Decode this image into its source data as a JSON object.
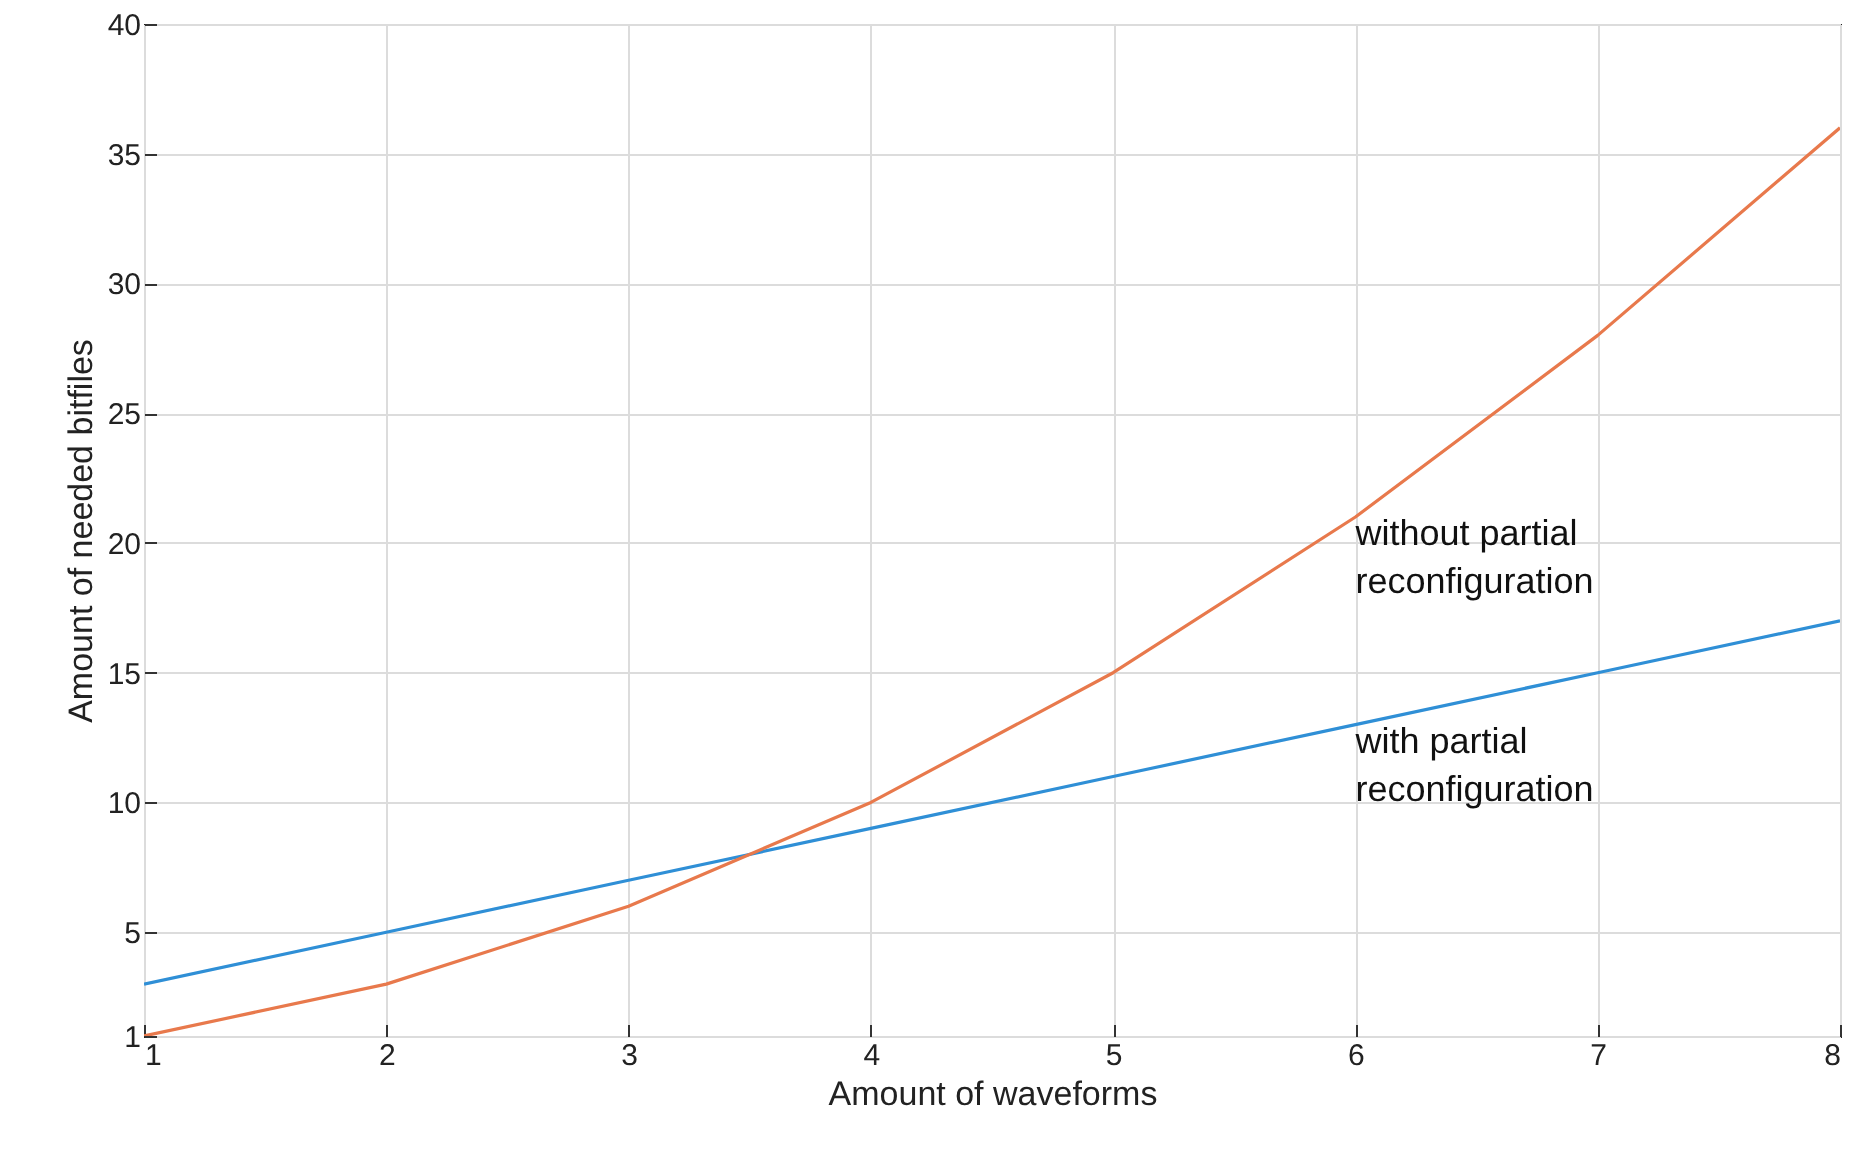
{
  "chart_data": {
    "type": "line",
    "xlabel": "Amount of waveforms",
    "ylabel": "Amount of needed bitfiles",
    "x": [
      1,
      2,
      3,
      4,
      5,
      6,
      7,
      8
    ],
    "series": [
      {
        "name": "with partial reconfiguration",
        "color": "#2f8fd6",
        "values": [
          3,
          5,
          7,
          9,
          11,
          13,
          15,
          17
        ]
      },
      {
        "name": "without partial reconfiguration",
        "color": "#e8794c",
        "values": [
          1,
          3,
          6,
          10,
          15,
          21,
          28,
          36
        ]
      }
    ],
    "xlim": [
      1,
      8
    ],
    "xticks": [
      1,
      2,
      3,
      4,
      5,
      6,
      7,
      8
    ],
    "ylim": [
      1,
      40
    ],
    "yticks": [
      1,
      5,
      10,
      15,
      20,
      25,
      30,
      35,
      40
    ],
    "grid": true,
    "marker": "none",
    "line_style": "solid"
  }
}
